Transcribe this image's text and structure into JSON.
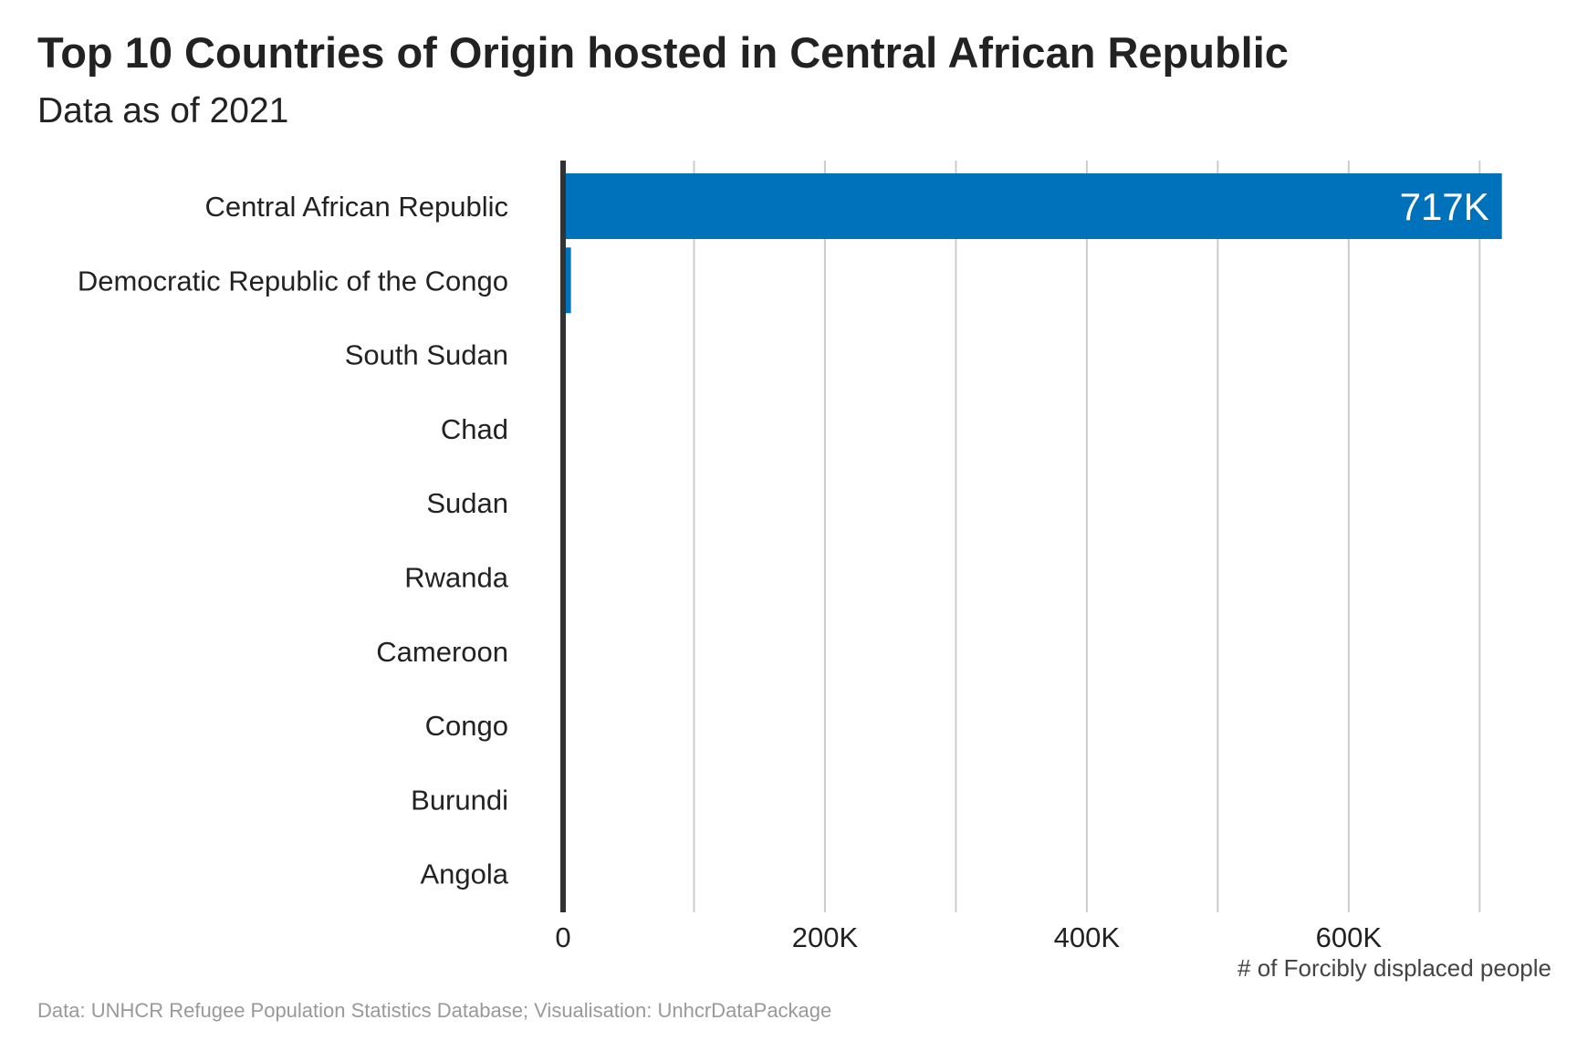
{
  "title": "Top 10 Countries of Origin hosted in Central African Republic",
  "subtitle": "Data as of 2021",
  "caption": "Data: UNHCR Refugee Population Statistics Database; Visualisation: UnhcrDataPackage",
  "colors": {
    "bar": "#0072BC",
    "axis_line": "#333333",
    "grid": "#CCCCCC",
    "text": "#222222",
    "caption": "#999999",
    "value_label": "#FFFFFF"
  },
  "chart_data": {
    "type": "bar",
    "orientation": "horizontal",
    "categories": [
      "Central African Republic",
      "Democratic Republic of the Congo",
      "South Sudan",
      "Chad",
      "Sudan",
      "Rwanda",
      "Cameroon",
      "Congo",
      "Burundi",
      "Angola"
    ],
    "values": [
      717000,
      6000,
      1000,
      800,
      500,
      300,
      200,
      150,
      100,
      50
    ],
    "value_labels": [
      "717K",
      "",
      "",
      "",
      "",
      "",
      "",
      "",
      "",
      ""
    ],
    "xlabel": "# of Forcibly displaced people",
    "ylabel": "",
    "xlim": [
      0,
      720000
    ],
    "x_ticks": [
      0,
      200000,
      400000,
      600000
    ],
    "x_tick_labels": [
      "0",
      "200K",
      "400K",
      "600K"
    ],
    "minor_gridlines": [
      100000,
      300000,
      500000,
      700000
    ],
    "grid": "vertical",
    "legend": "none"
  }
}
